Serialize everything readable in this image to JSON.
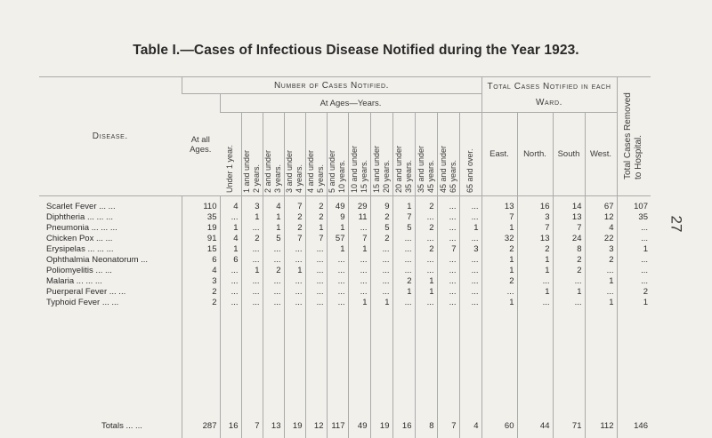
{
  "title": "Table I.—Cases of Infectious Disease Notified during the Year 1923.",
  "page_number": "27",
  "headers": {
    "disease": "Disease.",
    "number_of_cases": "Number of Cases Notified.",
    "at_all_ages": "At all Ages.",
    "at_ages": "At Ages—Years.",
    "age_groups": [
      "Under 1 year.",
      "1 and under\n2 years.",
      "2 and under\n3 years.",
      "3 and under\n4 years.",
      "4 and under\n5 years.",
      "5 and under\n10 years.",
      "10 and under\n15 years.",
      "15 and under\n20 years.",
      "20 and under\n35 years.",
      "35 and under\n45 years.",
      "45 and under\n65 years.",
      "65 and over."
    ],
    "total_cases_ward": "Total Cases Notified in each Ward.",
    "wards": [
      "East.",
      "North.",
      "South",
      "West."
    ],
    "removed_to_hospital": "Total Cases Removed to Hospital."
  },
  "rows": [
    {
      "disease": "Scarlet Fever  ...  ...",
      "values": [
        "110",
        "4",
        "3",
        "4",
        "7",
        "2",
        "49",
        "29",
        "9",
        "1",
        "2",
        "...",
        "...",
        "13",
        "16",
        "14",
        "67",
        "107"
      ]
    },
    {
      "disease": "Diphtheria ...  ...  ...",
      "values": [
        "35",
        "...",
        "1",
        "1",
        "2",
        "2",
        "9",
        "11",
        "2",
        "7",
        "...",
        "...",
        "...",
        "7",
        "3",
        "13",
        "12",
        "35"
      ]
    },
    {
      "disease": "Pneumonia ...  ...  ...",
      "values": [
        "19",
        "1",
        "...",
        "1",
        "2",
        "1",
        "1",
        "...",
        "5",
        "5",
        "2",
        "...",
        "1",
        "1",
        "7",
        "7",
        "4",
        "..."
      ]
    },
    {
      "disease": "Chicken Pox  ...  ...",
      "values": [
        "91",
        "4",
        "2",
        "5",
        "7",
        "7",
        "57",
        "7",
        "2",
        "...",
        "...",
        "...",
        "...",
        "32",
        "13",
        "24",
        "22",
        "..."
      ]
    },
    {
      "disease": "Erysipelas ...  ...  ...",
      "values": [
        "15",
        "1",
        "...",
        "...",
        "...",
        "...",
        "1",
        "1",
        "...",
        "...",
        "2",
        "7",
        "3",
        "2",
        "2",
        "8",
        "3",
        "1"
      ]
    },
    {
      "disease": "Ophthalmia Neonatorum ...",
      "values": [
        "6",
        "6",
        "...",
        "...",
        "...",
        "...",
        "...",
        "...",
        "...",
        "...",
        "...",
        "...",
        "...",
        "1",
        "1",
        "2",
        "2",
        "..."
      ]
    },
    {
      "disease": "Poliomyelitis  ...  ...",
      "values": [
        "4",
        "...",
        "1",
        "2",
        "1",
        "...",
        "...",
        "...",
        "...",
        "...",
        "...",
        "...",
        "...",
        "1",
        "1",
        "2",
        "...",
        "..."
      ]
    },
    {
      "disease": "Malaria  ...  ...  ...",
      "values": [
        "3",
        "...",
        "...",
        "...",
        "...",
        "...",
        "...",
        "...",
        "...",
        "2",
        "1",
        "...",
        "...",
        "2",
        "...",
        "...",
        "1",
        "..."
      ]
    },
    {
      "disease": "Puerperal Fever  ...  ...",
      "values": [
        "2",
        "...",
        "...",
        "...",
        "...",
        "...",
        "...",
        "...",
        "...",
        "1",
        "1",
        "...",
        "...",
        "...",
        "1",
        "1",
        "...",
        "2"
      ]
    },
    {
      "disease": "Typhoid Fever  ...  ...",
      "values": [
        "2",
        "...",
        "...",
        "...",
        "...",
        "...",
        "...",
        "1",
        "1",
        "...",
        "...",
        "...",
        "...",
        "1",
        "...",
        "...",
        "1",
        "1"
      ]
    }
  ],
  "totals": {
    "label": "Totals ...  ...",
    "values": [
      "287",
      "16",
      "7",
      "13",
      "19",
      "12",
      "117",
      "49",
      "19",
      "16",
      "8",
      "7",
      "4",
      "60",
      "44",
      "71",
      "112",
      "146"
    ]
  }
}
